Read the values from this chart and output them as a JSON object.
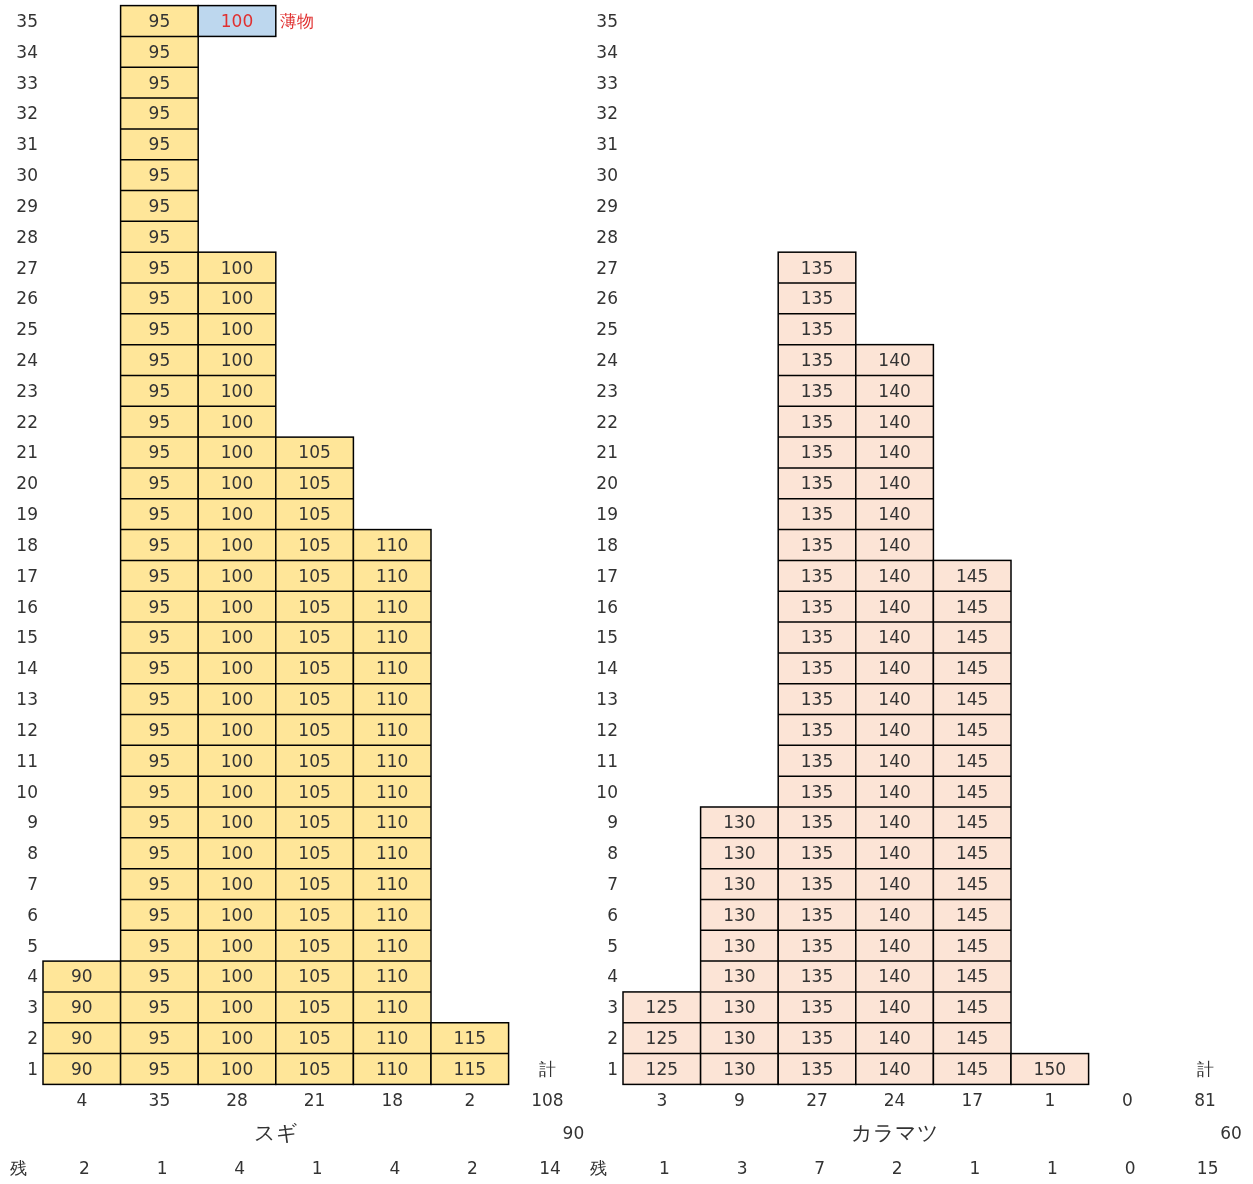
{
  "chart_data": [
    {
      "type": "bar",
      "xlabel": "スギ",
      "categories": [
        "90",
        "95",
        "100",
        "105",
        "110",
        "115"
      ],
      "series": [
        {
          "color": "#ffe699",
          "values": [
            4,
            35,
            27,
            21,
            18,
            2
          ]
        },
        {
          "name": "薄物",
          "color": "#bdd7ee",
          "base": [
            null,
            null,
            34,
            null,
            null,
            null
          ],
          "values": [
            null,
            null,
            1,
            null,
            null,
            null
          ]
        }
      ],
      "ylim": [
        0,
        35
      ],
      "yticks": [
        {
          "value": 0.5,
          "label": "1"
        },
        {
          "value": 1.5,
          "label": "2"
        },
        {
          "value": 2.5,
          "label": "3"
        },
        {
          "value": 3.5,
          "label": "4"
        },
        {
          "value": 4.5,
          "label": "5"
        },
        {
          "value": 5.5,
          "label": "6"
        },
        {
          "value": 6.5,
          "label": "7"
        },
        {
          "value": 7.5,
          "label": "8"
        },
        {
          "value": 8.5,
          "label": "9"
        },
        {
          "value": 9.5,
          "label": "10"
        },
        {
          "value": 10.5,
          "label": "11"
        },
        {
          "value": 11.5,
          "label": "12"
        },
        {
          "value": 12.5,
          "label": "13"
        },
        {
          "value": 13.5,
          "label": "14"
        },
        {
          "value": 14.5,
          "label": "15"
        },
        {
          "value": 15.5,
          "label": "16"
        },
        {
          "value": 16.5,
          "label": "17"
        },
        {
          "value": 17.5,
          "label": "18"
        },
        {
          "value": 18.5,
          "label": "19"
        },
        {
          "value": 19.5,
          "label": "20"
        },
        {
          "value": 20.5,
          "label": "21"
        },
        {
          "value": 21.5,
          "label": "22"
        },
        {
          "value": 22.5,
          "label": "23"
        },
        {
          "value": 23.5,
          "label": "24"
        },
        {
          "value": 24.5,
          "label": "25"
        },
        {
          "value": 25.5,
          "label": "26"
        },
        {
          "value": 26.5,
          "label": "27"
        },
        {
          "value": 27.5,
          "label": "28"
        },
        {
          "value": 28.5,
          "label": "29"
        },
        {
          "value": 29.5,
          "label": "30"
        },
        {
          "value": 30.5,
          "label": "31"
        },
        {
          "value": 31.5,
          "label": "32"
        },
        {
          "value": 32.5,
          "label": "33"
        },
        {
          "value": 33.5,
          "label": "34"
        },
        {
          "value": 34.5,
          "label": "35"
        }
      ],
      "totals": [
        "4",
        "35",
        "28",
        "21",
        "18",
        "2"
      ],
      "annotations": [
        "計",
        "108",
        "90",
        "残 2 1 4 1 4 2 14"
      ]
    },
    {
      "type": "bar",
      "xlabel": "カラマツ",
      "categories": [
        "125",
        "130",
        "135",
        "140",
        "145",
        "150",
        null
      ],
      "series": [
        {
          "color": "#fce4d6",
          "values": [
            3,
            9,
            27,
            24,
            17,
            1,
            0
          ]
        }
      ],
      "ylim": [
        0,
        35
      ],
      "yticks": [
        {
          "value": 0.5,
          "label": "1"
        },
        {
          "value": 1.5,
          "label": "2"
        },
        {
          "value": 2.5,
          "label": "3"
        },
        {
          "value": 3.5,
          "label": "4"
        },
        {
          "value": 4.5,
          "label": "5"
        },
        {
          "value": 5.5,
          "label": "6"
        },
        {
          "value": 6.5,
          "label": "7"
        },
        {
          "value": 7.5,
          "label": "8"
        },
        {
          "value": 8.5,
          "label": "9"
        },
        {
          "value": 9.5,
          "label": "10"
        },
        {
          "value": 10.5,
          "label": "11"
        },
        {
          "value": 11.5,
          "label": "12"
        },
        {
          "value": 12.5,
          "label": "13"
        },
        {
          "value": 13.5,
          "label": "14"
        },
        {
          "value": 14.5,
          "label": "15"
        },
        {
          "value": 15.5,
          "label": "16"
        },
        {
          "value": 16.5,
          "label": "17"
        },
        {
          "value": 17.5,
          "label": "18"
        },
        {
          "value": 18.5,
          "label": "19"
        },
        {
          "value": 19.5,
          "label": "20"
        },
        {
          "value": 20.5,
          "label": "21"
        },
        {
          "value": 21.5,
          "label": "22"
        },
        {
          "value": 22.5,
          "label": "23"
        },
        {
          "value": 23.5,
          "label": "24"
        },
        {
          "value": 24.5,
          "label": "25"
        },
        {
          "value": 25.5,
          "label": "26"
        },
        {
          "value": 26.5,
          "label": "27"
        },
        {
          "value": 27.5,
          "label": "28"
        },
        {
          "value": 28.5,
          "label": "29"
        },
        {
          "value": 29.5,
          "label": "30"
        },
        {
          "value": 30.5,
          "label": "31"
        },
        {
          "value": 31.5,
          "label": "32"
        },
        {
          "value": 32.5,
          "label": "33"
        },
        {
          "value": 33.5,
          "label": "34"
        },
        {
          "value": 34.5,
          "label": "35"
        }
      ],
      "totals": [
        "3",
        "9",
        "27",
        "24",
        "17",
        "1",
        "0"
      ],
      "annotations": [
        "計",
        "81",
        "60",
        "残 1 3 7 2 1 1 0 15"
      ]
    }
  ]
}
